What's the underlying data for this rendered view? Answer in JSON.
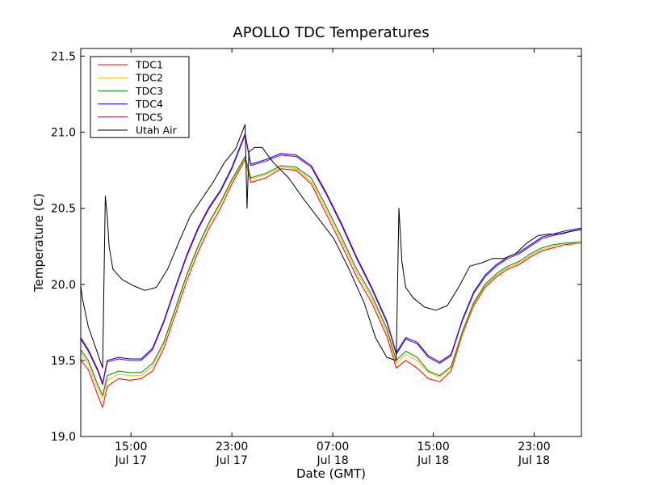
{
  "chart_data": {
    "type": "line",
    "title": "APOLLO TDC Temperatures",
    "xlabel": "Date (GMT)",
    "ylabel": "Temperature (C)",
    "x_unit": "hours since Jul 17 00:00 GMT",
    "xlim": [
      10.5,
      23.75
    ],
    "ylim": [
      19.0,
      21.55
    ],
    "grid": false,
    "legend_position": "top-left",
    "y_ticks": [
      {
        "value": 19.0,
        "label": "19.0"
      },
      {
        "value": 19.5,
        "label": "19.5"
      },
      {
        "value": 20.0,
        "label": "20.0"
      },
      {
        "value": 20.5,
        "label": "20.5"
      },
      {
        "value": 21.0,
        "label": "21.0"
      },
      {
        "value": 21.5,
        "label": "21.5"
      }
    ],
    "x_ticks": [
      {
        "value": 11.83,
        "time": "15:00",
        "date": "Jul 17"
      },
      {
        "value": 14.5,
        "time": "23:00",
        "date": "Jul 17"
      },
      {
        "value": 17.17,
        "time": "07:00",
        "date": "Jul 18"
      },
      {
        "value": 19.83,
        "time": "15:00",
        "date": "Jul 18"
      },
      {
        "value": 22.5,
        "time": "23:00",
        "date": "Jul 18"
      }
    ],
    "x": [
      10.5,
      10.7,
      10.95,
      11.08,
      11.2,
      11.5,
      11.8,
      12.1,
      12.4,
      12.7,
      13.0,
      13.3,
      13.6,
      13.9,
      14.2,
      14.5,
      14.85,
      15.0,
      15.4,
      15.8,
      16.2,
      16.6,
      17.0,
      17.4,
      17.8,
      18.2,
      18.6,
      18.85,
      19.1,
      19.4,
      19.7,
      20.0,
      20.3,
      20.6,
      20.9,
      21.2,
      21.5,
      21.8,
      22.1,
      22.4,
      22.7,
      23.0,
      23.3,
      23.75
    ],
    "series": [
      {
        "name": "TDC1",
        "color": "#ff0000",
        "values": [
          19.5,
          19.44,
          19.27,
          19.19,
          19.33,
          19.38,
          19.37,
          19.38,
          19.43,
          19.58,
          19.8,
          20.02,
          20.21,
          20.37,
          20.5,
          20.66,
          20.82,
          20.67,
          20.7,
          20.76,
          20.75,
          20.66,
          20.46,
          20.26,
          20.05,
          19.88,
          19.66,
          19.45,
          19.5,
          19.45,
          19.38,
          19.36,
          19.43,
          19.67,
          19.86,
          19.98,
          20.05,
          20.1,
          20.13,
          20.18,
          20.22,
          20.24,
          20.26,
          20.27
        ]
      },
      {
        "name": "TDC2",
        "color": "#ffbb00",
        "values": [
          19.55,
          19.48,
          19.32,
          19.25,
          19.37,
          19.41,
          19.4,
          19.4,
          19.46,
          19.61,
          19.83,
          20.05,
          20.24,
          20.4,
          20.53,
          20.68,
          20.83,
          20.69,
          20.72,
          20.77,
          20.76,
          20.68,
          20.49,
          20.29,
          20.08,
          19.91,
          19.69,
          19.48,
          19.54,
          19.5,
          19.42,
          19.39,
          19.45,
          19.68,
          19.87,
          19.99,
          20.06,
          20.11,
          20.14,
          20.19,
          20.23,
          20.25,
          20.27,
          20.27
        ]
      },
      {
        "name": "TDC3",
        "color": "#008000",
        "values": [
          19.57,
          19.5,
          19.34,
          19.27,
          19.4,
          19.43,
          19.42,
          19.42,
          19.48,
          19.62,
          19.84,
          20.06,
          20.25,
          20.41,
          20.54,
          20.69,
          20.84,
          20.7,
          20.73,
          20.78,
          20.77,
          20.7,
          20.51,
          20.31,
          20.1,
          19.93,
          19.71,
          19.5,
          19.56,
          19.52,
          19.43,
          19.4,
          19.46,
          19.69,
          19.88,
          20.0,
          20.07,
          20.12,
          20.15,
          20.2,
          20.24,
          20.26,
          20.27,
          20.28
        ]
      },
      {
        "name": "TDC4",
        "color": "#0000ff",
        "values": [
          19.65,
          19.57,
          19.44,
          19.35,
          19.5,
          19.52,
          19.51,
          19.51,
          19.58,
          19.76,
          19.98,
          20.19,
          20.37,
          20.51,
          20.62,
          20.77,
          20.99,
          20.79,
          20.82,
          20.86,
          20.85,
          20.78,
          20.6,
          20.4,
          20.18,
          19.98,
          19.76,
          19.55,
          19.65,
          19.62,
          19.53,
          19.49,
          19.54,
          19.77,
          19.95,
          20.06,
          20.13,
          20.18,
          20.21,
          20.26,
          20.31,
          20.33,
          20.35,
          20.37
        ]
      },
      {
        "name": "TDC5",
        "color": "#800080",
        "values": [
          19.64,
          19.56,
          19.43,
          19.34,
          19.49,
          19.51,
          19.5,
          19.5,
          19.57,
          19.75,
          19.97,
          20.18,
          20.36,
          20.5,
          20.61,
          20.76,
          20.98,
          20.78,
          20.81,
          20.85,
          20.84,
          20.77,
          20.59,
          20.39,
          20.17,
          19.97,
          19.75,
          19.54,
          19.64,
          19.61,
          19.52,
          19.48,
          19.53,
          19.76,
          19.94,
          20.05,
          20.12,
          20.17,
          20.2,
          20.25,
          20.3,
          20.32,
          20.34,
          20.36
        ]
      },
      {
        "name": "Utah Air",
        "color": "#000000",
        "x": [
          10.5,
          10.55,
          10.7,
          10.9,
          11.08,
          11.15,
          11.2,
          11.25,
          11.35,
          11.6,
          11.9,
          12.2,
          12.5,
          12.8,
          13.1,
          13.4,
          13.7,
          14.0,
          14.3,
          14.6,
          14.85,
          14.9,
          14.95,
          15.1,
          15.3,
          15.6,
          16.0,
          16.4,
          16.8,
          17.2,
          17.6,
          18.0,
          18.3,
          18.6,
          18.85,
          18.92,
          19.0,
          19.1,
          19.3,
          19.6,
          19.9,
          20.2,
          20.5,
          20.8,
          21.1,
          21.4,
          21.7,
          22.0,
          22.3,
          22.6,
          22.9,
          23.2,
          23.5,
          23.75
        ],
        "values": [
          19.99,
          19.9,
          19.72,
          19.58,
          19.45,
          20.58,
          20.45,
          20.25,
          20.1,
          20.03,
          19.99,
          19.96,
          19.98,
          20.1,
          20.28,
          20.45,
          20.56,
          20.67,
          20.8,
          20.89,
          21.05,
          20.5,
          20.87,
          20.9,
          20.9,
          20.8,
          20.7,
          20.56,
          20.43,
          20.3,
          20.1,
          19.88,
          19.65,
          19.52,
          19.5,
          20.5,
          20.15,
          19.98,
          19.91,
          19.85,
          19.83,
          19.86,
          19.98,
          20.12,
          20.14,
          20.17,
          20.17,
          20.2,
          20.27,
          20.32,
          20.33,
          20.33,
          20.35,
          20.36
        ]
      }
    ]
  }
}
